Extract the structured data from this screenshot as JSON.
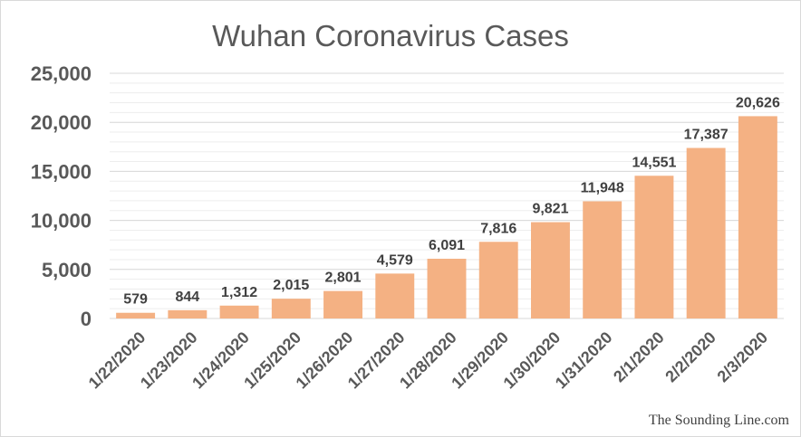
{
  "chart_data": {
    "type": "bar",
    "title": "Wuhan Coronavirus Cases",
    "categories": [
      "1/22/2020",
      "1/23/2020",
      "1/24/2020",
      "1/25/2020",
      "1/26/2020",
      "1/27/2020",
      "1/28/2020",
      "1/29/2020",
      "1/30/2020",
      "1/31/2020",
      "2/1/2020",
      "2/2/2020",
      "2/3/2020"
    ],
    "values": [
      579,
      844,
      1312,
      2015,
      2801,
      4579,
      6091,
      7816,
      9821,
      11948,
      14551,
      17387,
      20626
    ],
    "data_labels": [
      "579",
      "844",
      "1,312",
      "2,015",
      "2,801",
      "4,579",
      "6,091",
      "7,816",
      "9,821",
      "11,948",
      "14,551",
      "17,387",
      "20,626"
    ],
    "y_ticks": [
      0,
      5000,
      10000,
      15000,
      20000,
      25000
    ],
    "y_tick_labels": [
      "0",
      "5,000",
      "10,000",
      "15,000",
      "20,000",
      "25,000"
    ],
    "ylim": [
      0,
      25000
    ],
    "grid": true,
    "legend": "none",
    "bar_color": "#f4b183",
    "grid_color": "#d9d9d9",
    "text_color": "#404040"
  },
  "credit": "The Sounding Line.com"
}
